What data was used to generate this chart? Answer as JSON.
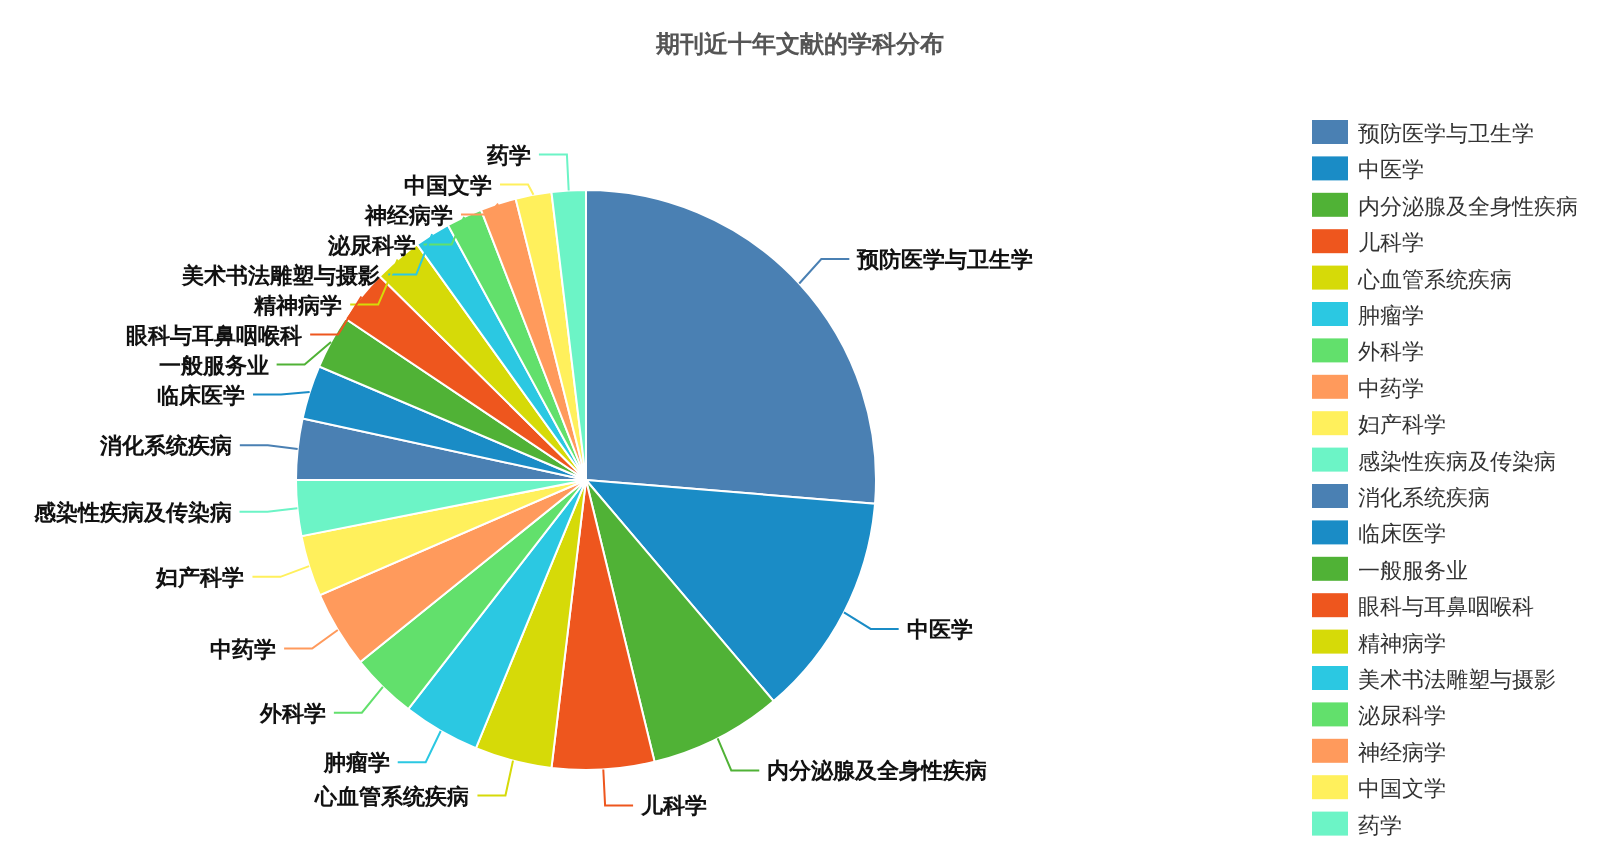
{
  "chart_data": {
    "type": "pie",
    "title": "期刊近十年文献的学科分布",
    "categories": [
      "预防医学与卫生学",
      "中医学",
      "内分泌腺及全身性疾病",
      "儿科学",
      "心血管系统疾病",
      "肿瘤学",
      "外科学",
      "中药学",
      "妇产科学",
      "感染性疾病及传染病",
      "消化系统疾病",
      "临床医学",
      "一般服务业",
      "眼科与耳鼻咽喉科",
      "精神病学",
      "美术书法雕塑与摄影",
      "泌尿科学",
      "神经病学",
      "中国文学",
      "药学"
    ],
    "values": [
      26.3,
      12.5,
      7.4,
      5.7,
      4.3,
      4.3,
      3.7,
      4.3,
      3.4,
      3.1,
      3.4,
      3.0,
      3.0,
      3.0,
      2.7,
      2.0,
      2.0,
      2.0,
      2.0,
      1.9
    ],
    "colors": [
      "#4a80b3",
      "#1a8cc6",
      "#50b236",
      "#ee561e",
      "#d6da08",
      "#2bc8e2",
      "#62e06c",
      "#ff9a5c",
      "#fff05c",
      "#6cf4c6",
      "#4a80b3",
      "#1a8cc6",
      "#50b236",
      "#ee561e",
      "#d6da08",
      "#2bc8e2",
      "#62e06c",
      "#ff9a5c",
      "#fff05c",
      "#6cf4c6"
    ],
    "legend": "right"
  }
}
